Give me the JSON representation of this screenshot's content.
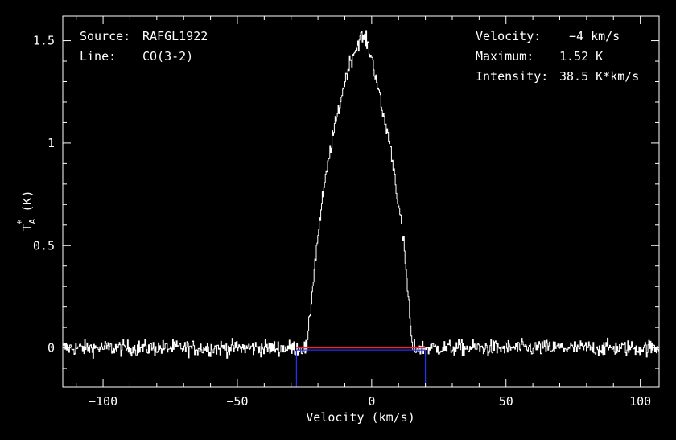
{
  "info_left": {
    "source_label": "Source:",
    "source_value": "RAFGL1922",
    "line_label": "Line:",
    "line_value": "CO(3-2)"
  },
  "info_right": {
    "velocity_label": "Velocity:",
    "velocity_value": "−4 km/s",
    "maximum_label": "Maximum:",
    "maximum_value": "1.52 K",
    "intensity_label": "Intensity:",
    "intensity_value": "38.5 K*km/s"
  },
  "chart_data": {
    "type": "line",
    "title": "",
    "xlabel": "Velocity (km/s)",
    "ylabel": "T*A (K)",
    "xlim": [
      -115,
      107
    ],
    "ylim": [
      -0.19,
      1.62
    ],
    "xticks": [
      -100,
      -50,
      0,
      50,
      100
    ],
    "xtick_labels": [
      "−100",
      "−50",
      "0",
      "50",
      "100"
    ],
    "yticks": [
      0,
      0.5,
      1,
      1.5
    ],
    "ytick_labels": [
      "0",
      "0.5",
      "1",
      "1.5"
    ],
    "grid": false,
    "series": [
      {
        "style": "histogram",
        "color": "#ffffff",
        "x": [
          -115,
          -100,
          -50,
          -24,
          -22,
          -20,
          -18,
          -15,
          -12,
          -10,
          -8,
          -6,
          -4,
          -2,
          0,
          2,
          4,
          6,
          8,
          10,
          12,
          14,
          15,
          20,
          50,
          100,
          107
        ],
        "y": [
          0.0,
          0.0,
          0.0,
          0.0,
          0.3,
          0.55,
          0.75,
          1.0,
          1.18,
          1.3,
          1.4,
          1.46,
          1.52,
          1.5,
          1.42,
          1.3,
          1.15,
          1.05,
          0.9,
          0.7,
          0.5,
          0.2,
          0.0,
          0.0,
          0.0,
          0.0,
          0.0
        ],
        "noise_rms": 0.03
      }
    ],
    "baseline": {
      "color": "#ff2020",
      "x": [
        -28,
        20
      ],
      "y": 0
    },
    "window_markers": {
      "color": "#2030ff",
      "x": [
        -28,
        20
      ]
    }
  },
  "colors": {
    "background": "#000000",
    "axes": "#ffffff",
    "spectrum": "#ffffff",
    "baseline": "#ff2020",
    "window": "#2030ff"
  }
}
